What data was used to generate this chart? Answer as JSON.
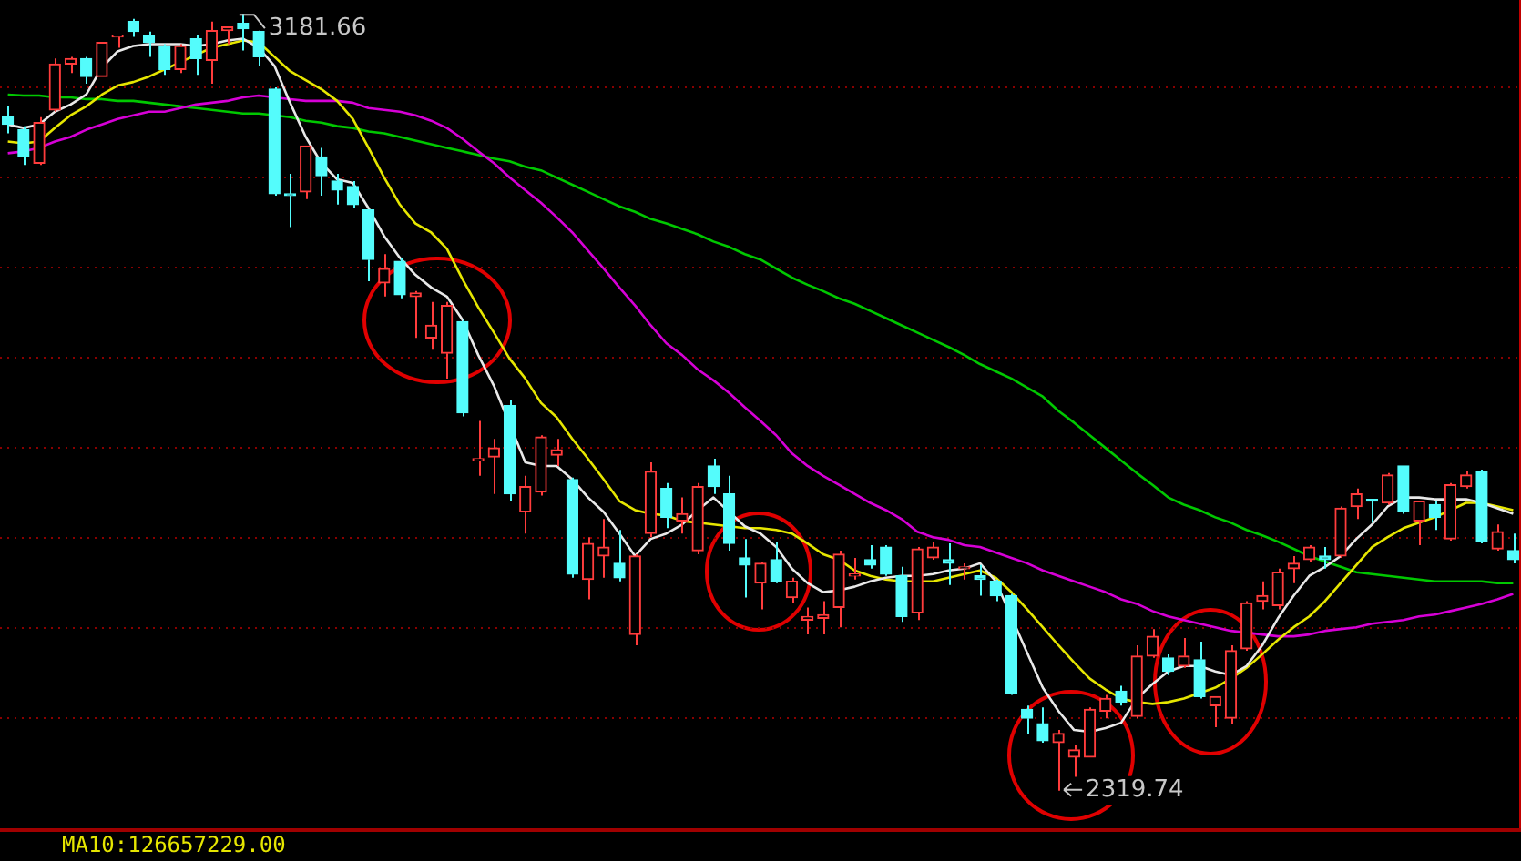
{
  "chart_data": {
    "type": "candlestick",
    "categories": [
      null,
      null,
      null,
      null,
      null,
      null,
      null,
      null,
      null,
      null,
      null,
      null,
      null,
      null,
      null,
      null,
      null,
      null,
      null,
      null,
      null,
      null,
      null,
      null,
      null,
      null,
      null,
      null,
      null,
      null,
      null,
      null,
      null,
      null,
      null,
      null,
      null,
      null,
      null,
      null,
      null,
      null,
      null,
      null,
      null,
      null,
      null,
      null,
      null,
      null,
      null,
      null,
      null,
      null,
      null,
      null,
      null,
      null,
      null,
      null,
      null,
      null,
      null,
      null,
      null,
      null,
      null,
      null,
      null,
      null,
      null,
      null,
      null,
      null,
      null,
      null,
      null,
      null,
      null,
      null,
      null,
      null,
      null,
      null,
      null,
      null,
      null,
      null,
      null,
      null,
      null,
      null,
      null,
      null,
      null,
      null,
      null
    ],
    "ylim": [
      2278,
      3197
    ],
    "yticks": [
      {
        "value": 2400,
        "label": null
      },
      {
        "value": 2500,
        "label": null
      },
      {
        "value": 2600,
        "label": null
      },
      {
        "value": 2700,
        "label": null
      },
      {
        "value": 2800,
        "label": null
      },
      {
        "value": 2900,
        "label": null
      },
      {
        "value": 3000,
        "label": null
      },
      {
        "value": 3100,
        "label": null
      }
    ],
    "grid": "y",
    "tick_labels": false,
    "series": [
      {
        "type": "candlestick",
        "ohlc": [
          [
            3067,
            3079,
            3049,
            3059
          ],
          [
            3053,
            3057,
            3014,
            3023
          ],
          [
            3016,
            3067,
            3014,
            3061
          ],
          [
            3075,
            3132,
            3073,
            3126
          ],
          [
            3126,
            3134,
            3116,
            3132
          ],
          [
            3132,
            3134,
            3104,
            3112
          ],
          [
            3112,
            3150,
            3112,
            3150
          ],
          [
            3156,
            3158,
            3144,
            3158
          ],
          [
            3173,
            3176,
            3156,
            3162
          ],
          [
            3158,
            3162,
            3134,
            3150
          ],
          [
            3146,
            3148,
            3114,
            3120
          ],
          [
            3120,
            3148,
            3116,
            3146
          ],
          [
            3154,
            3158,
            3114,
            3132
          ],
          [
            3130,
            3173,
            3104,
            3163
          ],
          [
            3163,
            3167,
            3148,
            3167
          ],
          [
            3171,
            3181.66,
            3141,
            3165
          ],
          [
            3162,
            3163,
            3124,
            3134
          ],
          [
            3098,
            3100,
            2980,
            2982
          ],
          [
            2982,
            3004,
            2945,
            2980
          ],
          [
            2984,
            3035,
            2976,
            3035
          ],
          [
            3023,
            3033,
            2980,
            3002
          ],
          [
            2996,
            3004,
            2970,
            2986
          ],
          [
            2990,
            2996,
            2966,
            2970
          ],
          [
            2964,
            2964,
            2885,
            2909
          ],
          [
            2883,
            2915,
            2868,
            2899
          ],
          [
            2907,
            2911,
            2866,
            2870
          ],
          [
            2868,
            2874,
            2822,
            2872
          ],
          [
            2822,
            2862,
            2809,
            2836
          ],
          [
            2805,
            2862,
            2777,
            2858
          ],
          [
            2840,
            2842,
            2735,
            2739
          ],
          [
            2686,
            2730,
            2669,
            2688
          ],
          [
            2690,
            2710,
            2649,
            2700
          ],
          [
            2747,
            2753,
            2641,
            2649
          ],
          [
            2629,
            2669,
            2605,
            2657
          ],
          [
            2651,
            2714,
            2647,
            2712
          ],
          [
            2692,
            2710,
            2680,
            2698
          ],
          [
            2665,
            2667,
            2556,
            2560
          ],
          [
            2554,
            2601,
            2532,
            2594
          ],
          [
            2580,
            2621,
            2556,
            2590
          ],
          [
            2572,
            2609,
            2552,
            2556
          ],
          [
            2493,
            2582,
            2481,
            2580
          ],
          [
            2605,
            2684,
            2601,
            2674
          ],
          [
            2655,
            2661,
            2611,
            2623
          ],
          [
            2619,
            2645,
            2605,
            2627
          ],
          [
            2586,
            2661,
            2582,
            2657
          ],
          [
            2680,
            2688,
            2649,
            2657
          ],
          [
            2649,
            2669,
            2586,
            2594
          ],
          [
            2578,
            2599,
            2534,
            2570
          ],
          [
            2550,
            2574,
            2521,
            2572
          ],
          [
            2576,
            2596,
            2550,
            2552
          ],
          [
            2534,
            2556,
            2528,
            2552
          ],
          [
            2509,
            2523,
            2493,
            2513
          ],
          [
            2511,
            2530,
            2493,
            2515
          ],
          [
            2523,
            2586,
            2501,
            2582
          ],
          [
            2558,
            2578,
            2554,
            2560
          ],
          [
            2576,
            2592,
            2566,
            2570
          ],
          [
            2590,
            2592,
            2558,
            2560
          ],
          [
            2558,
            2568,
            2507,
            2513
          ],
          [
            2517,
            2590,
            2509,
            2588
          ],
          [
            2578,
            2596,
            2576,
            2590
          ],
          [
            2576,
            2594,
            2548,
            2572
          ],
          [
            2566,
            2572,
            2554,
            2568
          ],
          [
            2558,
            2570,
            2536,
            2554
          ],
          [
            2552,
            2554,
            2530,
            2536
          ],
          [
            2536,
            2538,
            2426,
            2428
          ],
          [
            2410,
            2414,
            2383,
            2400
          ],
          [
            2394,
            2412,
            2373,
            2375
          ],
          [
            2373,
            2387,
            2319.74,
            2383
          ],
          [
            2357,
            2371,
            2335,
            2365
          ],
          [
            2357,
            2412,
            2357,
            2410
          ],
          [
            2408,
            2426,
            2400,
            2422
          ],
          [
            2430,
            2436,
            2414,
            2418
          ],
          [
            2402,
            2481,
            2400,
            2469
          ],
          [
            2469,
            2499,
            2467,
            2491
          ],
          [
            2467,
            2471,
            2448,
            2452
          ],
          [
            2458,
            2489,
            2456,
            2469
          ],
          [
            2465,
            2485,
            2422,
            2424
          ],
          [
            2414,
            2424,
            2390,
            2424
          ],
          [
            2400,
            2481,
            2394,
            2475
          ],
          [
            2477,
            2530,
            2475,
            2528
          ],
          [
            2530,
            2552,
            2521,
            2536
          ],
          [
            2525,
            2566,
            2521,
            2562
          ],
          [
            2566,
            2580,
            2550,
            2572
          ],
          [
            2576,
            2592,
            2574,
            2590
          ],
          [
            2580,
            2590,
            2566,
            2576
          ],
          [
            2580,
            2635,
            2578,
            2633
          ],
          [
            2635,
            2655,
            2621,
            2649
          ],
          [
            2643,
            2643,
            2617,
            2641
          ],
          [
            2639,
            2672,
            2637,
            2670
          ],
          [
            2680,
            2680,
            2627,
            2629
          ],
          [
            2619,
            2641,
            2592,
            2641
          ],
          [
            2637,
            2641,
            2609,
            2623
          ],
          [
            2599,
            2661,
            2597,
            2659
          ],
          [
            2657,
            2674,
            2655,
            2670
          ],
          [
            2674,
            2676,
            2594,
            2596
          ],
          [
            2588,
            2615,
            2586,
            2607
          ],
          [
            2586,
            2605,
            2572,
            2576
          ]
        ],
        "colors": [
          "#54fcfc",
          "#54fcfc",
          "#ff3c3c",
          "#ff3c3c",
          "#ff3c3c",
          "#54fcfc",
          "#ff3c3c",
          "#ff3c3c",
          "#54fcfc",
          "#54fcfc",
          "#54fcfc",
          "#ff3c3c",
          "#54fcfc",
          "#ff3c3c",
          "#ff3c3c",
          "#54fcfc",
          "#54fcfc",
          "#54fcfc",
          "#54fcfc",
          "#ff3c3c",
          "#54fcfc",
          "#54fcfc",
          "#54fcfc",
          "#54fcfc",
          "#ff3c3c",
          "#54fcfc",
          "#ff3c3c",
          "#ff3c3c",
          "#ff3c3c",
          "#54fcfc",
          "#ff3c3c",
          "#ff3c3c",
          "#54fcfc",
          "#ff3c3c",
          "#ff3c3c",
          "#ff3c3c",
          "#54fcfc",
          "#ff3c3c",
          "#ff3c3c",
          "#54fcfc",
          "#ff3c3c",
          "#ff3c3c",
          "#54fcfc",
          "#ff3c3c",
          "#ff3c3c",
          "#54fcfc",
          "#54fcfc",
          "#54fcfc",
          "#ff3c3c",
          "#54fcfc",
          "#ff3c3c",
          "#ff3c3c",
          "#ff3c3c",
          "#ff3c3c",
          "#ff3c3c",
          "#54fcfc",
          "#54fcfc",
          "#54fcfc",
          "#ff3c3c",
          "#ff3c3c",
          "#54fcfc",
          "#ff3c3c",
          "#54fcfc",
          "#54fcfc",
          "#54fcfc",
          "#54fcfc",
          "#54fcfc",
          "#ff3c3c",
          "#ff3c3c",
          "#ff3c3c",
          "#ff3c3c",
          "#54fcfc",
          "#ff3c3c",
          "#ff3c3c",
          "#54fcfc",
          "#ff3c3c",
          "#54fcfc",
          "#ff3c3c",
          "#ff3c3c",
          "#ff3c3c",
          "#ff3c3c",
          "#ff3c3c",
          "#ff3c3c",
          "#ff3c3c",
          "#54fcfc",
          "#ff3c3c",
          "#ff3c3c",
          "#54fcfc",
          "#ff3c3c",
          "#54fcfc",
          "#ff3c3c",
          "#54fcfc",
          "#ff3c3c",
          "#ff3c3c",
          "#54fcfc",
          "#ff3c3c",
          "#54fcfc"
        ]
      },
      {
        "type": "line",
        "color": "#e8e8e8",
        "values": [
          3059,
          3055,
          3059,
          3073,
          3081,
          3092,
          3122,
          3140,
          3146,
          3148,
          3148,
          3148,
          3146,
          3148,
          3152,
          3154,
          3144,
          3124,
          3083,
          3045,
          3016,
          2998,
          2994,
          2966,
          2935,
          2911,
          2892,
          2878,
          2868,
          2842,
          2803,
          2769,
          null,
          2684,
          2680,
          2680,
          2665,
          2645,
          2629,
          2605,
          2580,
          2599,
          2605,
          2615,
          2631,
          2645,
          2629,
          2613,
          2605,
          2590,
          2566,
          2550,
          2540,
          2542,
          2546,
          2552,
          2556,
          2558,
          2558,
          2560,
          2564,
          2566,
          2572,
          2552,
          null,
          2473,
          2434,
          2408,
          2387,
          2385,
          2389,
          2395,
          2422,
          2438,
          2452,
          2458,
          2458,
          2452,
          2448,
          2458,
          2481,
          2511,
          2536,
          2558,
          2568,
          2580,
          2599,
          2615,
          2635,
          2645,
          2645,
          2643,
          2643,
          2643,
          2639,
          2633,
          2627
        ]
      },
      {
        "type": "line",
        "color": "#e6e600",
        "values": [
          3040,
          3038,
          3040,
          3055,
          3069,
          3079,
          3092,
          3102,
          3106,
          3112,
          3120,
          3128,
          3136,
          3144,
          3148,
          3152,
          3150,
          3134,
          3118,
          3108,
          3098,
          3085,
          3065,
          3033,
          3000,
          2970,
          2949,
          2939,
          2921,
          2887,
          2856,
          2828,
          2799,
          2777,
          2750,
          2734,
          2710,
          2688,
          2665,
          2641,
          2631,
          2627,
          2625,
          2619,
          2617,
          2615,
          2613,
          2611,
          2611,
          2609,
          2605,
          2594,
          2582,
          2576,
          2564,
          2558,
          2554,
          2552,
          2552,
          2552,
          2556,
          2560,
          2564,
          2556,
          2540,
          2521,
          2501,
          2481,
          2462,
          2444,
          2432,
          2422,
          2418,
          2416,
          2418,
          2422,
          2428,
          2434,
          2444,
          2456,
          2471,
          2487,
          2501,
          2513,
          2530,
          2550,
          2570,
          2590,
          2601,
          2611,
          2617,
          2623,
          2631,
          2639,
          2639,
          2635,
          2631
        ]
      },
      {
        "type": "line",
        "color": "#d600d6",
        "values": [
          3027,
          3029,
          3033,
          3040,
          3045,
          3053,
          3059,
          3065,
          3069,
          3073,
          3073,
          3077,
          3081,
          3083,
          3085,
          3089,
          3091,
          3089,
          3087,
          3085,
          3085,
          3085,
          3083,
          3077,
          3075,
          3073,
          3069,
          3063,
          3055,
          3043,
          3029,
          3016,
          3000,
          2986,
          2972,
          2956,
          2939,
          2919,
          2899,
          2878,
          2858,
          2836,
          2816,
          2803,
          2787,
          2775,
          2761,
          2745,
          2730,
          2714,
          2694,
          2680,
          2669,
          2659,
          2649,
          2639,
          2631,
          2621,
          2607,
          2601,
          2598,
          2592,
          2590,
          2584,
          2578,
          2572,
          2564,
          2558,
          2552,
          2546,
          2540,
          2532,
          2527,
          2519,
          2513,
          2509,
          2505,
          2501,
          2497,
          2495,
          2493,
          2491,
          2491,
          2493,
          2497,
          2499,
          2501,
          2505,
          2507,
          2509,
          2513,
          2515,
          2519,
          2523,
          2527,
          2532,
          2538
        ]
      },
      {
        "type": "line",
        "color": "#00c800",
        "values": [
          3092,
          3091,
          3091,
          3089,
          3089,
          3087,
          3087,
          3085,
          3085,
          3083,
          3081,
          3079,
          3077,
          3075,
          3073,
          3071,
          3071,
          3069,
          3067,
          3063,
          3061,
          3057,
          3055,
          3051,
          3049,
          3045,
          3041,
          3037,
          3033,
          3029,
          3025,
          3021,
          3018,
          3012,
          3008,
          3000,
          2992,
          2984,
          2976,
          2968,
          2962,
          2954,
          2949,
          2943,
          2937,
          2929,
          2923,
          2915,
          2909,
          2899,
          2889,
          2881,
          2874,
          2866,
          2860,
          2852,
          2844,
          2836,
          2828,
          2820,
          2812,
          2803,
          2793,
          2785,
          2777,
          2767,
          2757,
          2741,
          2728,
          2714,
          2700,
          2686,
          2672,
          2659,
          2645,
          2637,
          2631,
          2623,
          2617,
          2609,
          2603,
          2596,
          2588,
          2580,
          2574,
          2568,
          2562,
          2560,
          2558,
          2556,
          2554,
          2552,
          2552,
          2552,
          2552,
          2550,
          2550
        ]
      }
    ],
    "annotations": [
      "3181.66",
      "2319.74",
      "MA10:126657229.00"
    ]
  }
}
